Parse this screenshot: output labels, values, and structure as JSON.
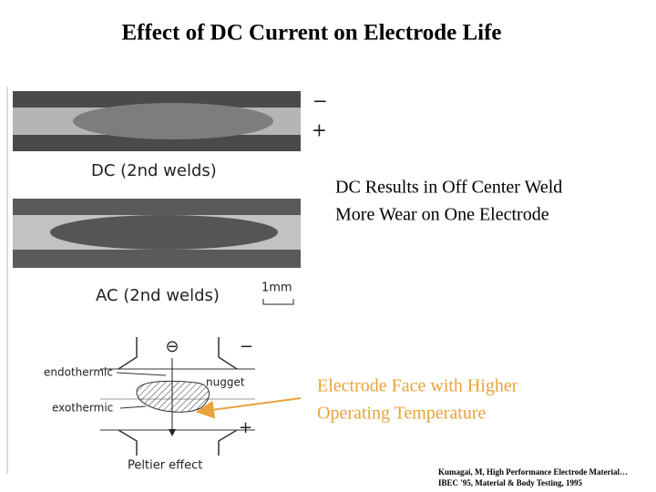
{
  "title": "Effect of DC Current on Electrode Life",
  "figure": {
    "minus_top": "−",
    "plus_top": "+",
    "dc_label": "DC (2nd welds)",
    "ac_label": "AC (2nd welds)",
    "scale_label": "1mm",
    "electron": "⊖",
    "minus_diagram": "−",
    "plus_diagram": "+",
    "endothermic": "endothermic",
    "nugget": "nugget",
    "exothermic": "exothermic",
    "peltier": "Peltier effect"
  },
  "notes": [
    {
      "lines": [
        "DC Results in Off Center Weld",
        "More Wear on One Electrode"
      ]
    },
    {
      "lines": [
        "Electrode Face with Higher",
        "Operating Temperature"
      ]
    }
  ],
  "citation": {
    "lines": [
      "Kumagai, M, High Performance Electrode Material…",
      "IBEC '95, Material & Body Testing, 1995"
    ]
  }
}
